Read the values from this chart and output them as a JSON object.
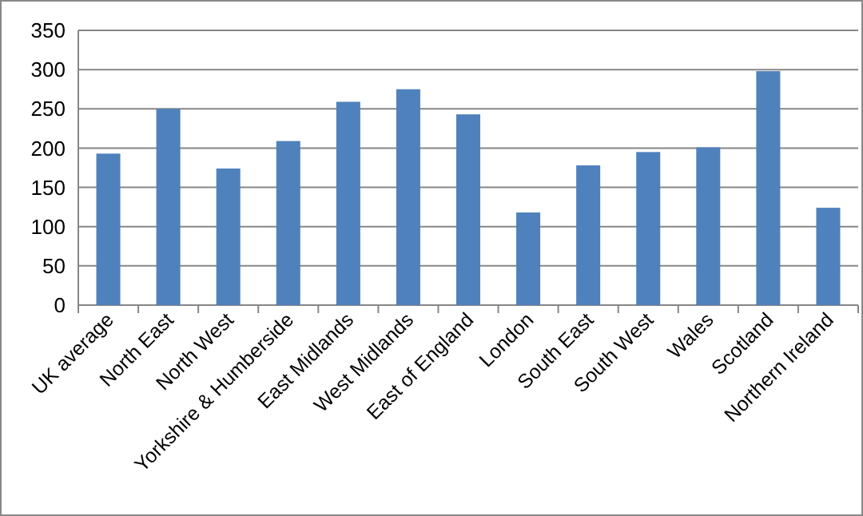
{
  "chart_data": {
    "type": "bar",
    "categories": [
      "UK average",
      "North East",
      "North West",
      "Yorkshire & Humberside",
      "East Midlands",
      "West Midlands",
      "East of England",
      "London",
      "South East",
      "South West",
      "Wales",
      "Scotland",
      "Northern Ireland"
    ],
    "values": [
      193,
      250,
      174,
      209,
      259,
      275,
      243,
      118,
      178,
      195,
      201,
      298,
      124
    ],
    "color": "#4f81bd",
    "ylim": [
      0,
      350
    ],
    "yticks": [
      0,
      50,
      100,
      150,
      200,
      250,
      300,
      350
    ],
    "grid": "y"
  }
}
